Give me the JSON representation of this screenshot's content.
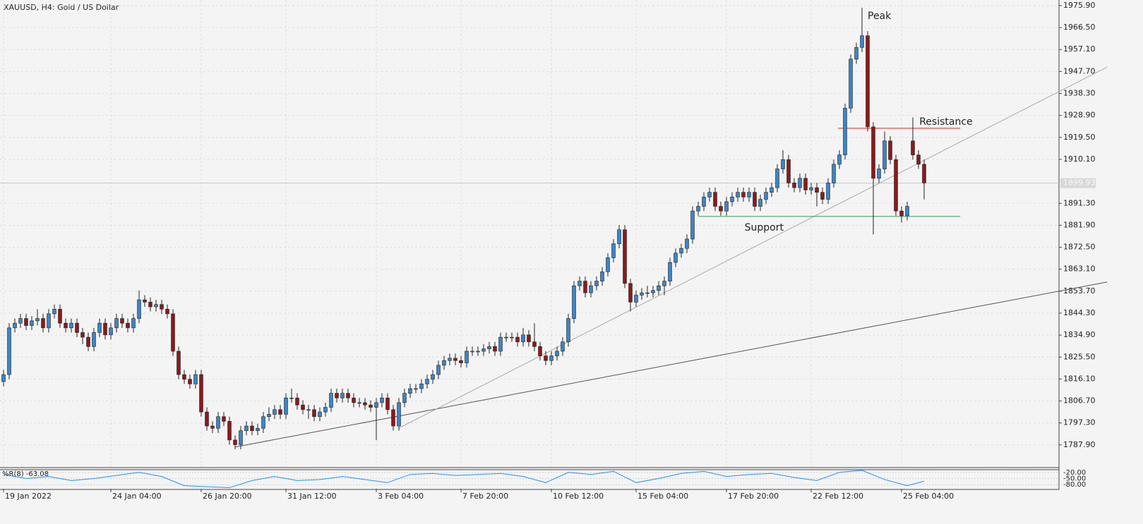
{
  "chart_data": {
    "type": "candlestick",
    "title": "XAUUSD, H4:  Gold / US Dollar",
    "candles": [
      [
        1815,
        1820,
        1813,
        1818
      ],
      [
        1818,
        1840,
        1816,
        1838
      ],
      [
        1838,
        1842,
        1836,
        1840
      ],
      [
        1840,
        1844,
        1838,
        1842
      ],
      [
        1842,
        1844,
        1837,
        1839
      ],
      [
        1839,
        1843,
        1837,
        1841
      ],
      [
        1841,
        1846,
        1839,
        1842
      ],
      [
        1842,
        1844,
        1836,
        1838
      ],
      [
        1838,
        1846,
        1836,
        1844
      ],
      [
        1844,
        1848,
        1842,
        1846
      ],
      [
        1846,
        1848,
        1838,
        1840
      ],
      [
        1840,
        1842,
        1836,
        1838
      ],
      [
        1838,
        1842,
        1836,
        1840
      ],
      [
        1840,
        1842,
        1834,
        1836
      ],
      [
        1836,
        1838,
        1831,
        1834
      ],
      [
        1834,
        1836,
        1828,
        1830
      ],
      [
        1830,
        1838,
        1828,
        1836
      ],
      [
        1836,
        1842,
        1834,
        1840
      ],
      [
        1840,
        1842,
        1833,
        1835
      ],
      [
        1835,
        1840,
        1833,
        1838
      ],
      [
        1838,
        1844,
        1836,
        1842
      ],
      [
        1842,
        1844,
        1838,
        1840
      ],
      [
        1840,
        1842,
        1836,
        1838
      ],
      [
        1838,
        1844,
        1836,
        1842
      ],
      [
        1842,
        1854,
        1840,
        1850
      ],
      [
        1850,
        1852,
        1847,
        1849
      ],
      [
        1849,
        1851,
        1845,
        1847
      ],
      [
        1847,
        1850,
        1845,
        1848
      ],
      [
        1848,
        1850,
        1844,
        1846
      ],
      [
        1846,
        1848,
        1842,
        1844
      ],
      [
        1844,
        1846,
        1826,
        1828
      ],
      [
        1828,
        1830,
        1816,
        1818
      ],
      [
        1818,
        1820,
        1814,
        1816
      ],
      [
        1816,
        1818,
        1812,
        1814
      ],
      [
        1814,
        1820,
        1812,
        1818
      ],
      [
        1818,
        1820,
        1800,
        1802
      ],
      [
        1802,
        1804,
        1794,
        1796
      ],
      [
        1796,
        1798,
        1793,
        1795
      ],
      [
        1795,
        1802,
        1793,
        1800
      ],
      [
        1800,
        1802,
        1796,
        1798
      ],
      [
        1798,
        1800,
        1788,
        1790
      ],
      [
        1790,
        1792,
        1786,
        1788
      ],
      [
        1788,
        1796,
        1786,
        1794
      ],
      [
        1794,
        1798,
        1792,
        1796
      ],
      [
        1796,
        1798,
        1792,
        1794
      ],
      [
        1794,
        1797,
        1792,
        1795
      ],
      [
        1795,
        1802,
        1793,
        1800
      ],
      [
        1800,
        1804,
        1798,
        1801
      ],
      [
        1801,
        1805,
        1799,
        1803
      ],
      [
        1803,
        1805,
        1799,
        1801
      ],
      [
        1801,
        1810,
        1799,
        1808
      ],
      [
        1808,
        1812,
        1806,
        1808
      ],
      [
        1808,
        1810,
        1803,
        1805
      ],
      [
        1805,
        1807,
        1801,
        1803
      ],
      [
        1803,
        1805,
        1799,
        1803
      ],
      [
        1803,
        1805,
        1798,
        1800
      ],
      [
        1800,
        1804,
        1798,
        1802
      ],
      [
        1802,
        1806,
        1800,
        1804
      ],
      [
        1804,
        1812,
        1802,
        1810
      ],
      [
        1810,
        1812,
        1806,
        1808
      ],
      [
        1808,
        1812,
        1806,
        1810
      ],
      [
        1810,
        1812,
        1806,
        1808
      ],
      [
        1808,
        1810,
        1804,
        1806
      ],
      [
        1806,
        1808,
        1804,
        1806
      ],
      [
        1806,
        1808,
        1803,
        1805
      ],
      [
        1805,
        1807,
        1802,
        1804
      ],
      [
        1804,
        1808,
        1790,
        1806
      ],
      [
        1806,
        1810,
        1804,
        1808
      ],
      [
        1808,
        1810,
        1801,
        1803
      ],
      [
        1803,
        1805,
        1794,
        1796
      ],
      [
        1796,
        1808,
        1794,
        1806
      ],
      [
        1806,
        1812,
        1804,
        1810
      ],
      [
        1810,
        1814,
        1808,
        1812
      ],
      [
        1812,
        1814,
        1810,
        1812
      ],
      [
        1812,
        1816,
        1810,
        1814
      ],
      [
        1814,
        1818,
        1812,
        1816
      ],
      [
        1816,
        1820,
        1814,
        1818
      ],
      [
        1818,
        1824,
        1816,
        1822
      ],
      [
        1822,
        1826,
        1820,
        1824
      ],
      [
        1824,
        1827,
        1822,
        1825
      ],
      [
        1825,
        1827,
        1822,
        1824
      ],
      [
        1824,
        1826,
        1821,
        1823
      ],
      [
        1823,
        1830,
        1821,
        1828
      ],
      [
        1828,
        1830,
        1826,
        1828
      ],
      [
        1828,
        1830,
        1826,
        1828
      ],
      [
        1828,
        1831,
        1826,
        1829
      ],
      [
        1829,
        1832,
        1827,
        1830
      ],
      [
        1830,
        1832,
        1826,
        1828
      ],
      [
        1828,
        1836,
        1826,
        1834
      ],
      [
        1834,
        1836,
        1832,
        1834
      ],
      [
        1834,
        1836,
        1832,
        1834
      ],
      [
        1834,
        1836,
        1830,
        1832
      ],
      [
        1832,
        1838,
        1830,
        1835
      ],
      [
        1835,
        1837,
        1830,
        1832
      ],
      [
        1832,
        1840,
        1828,
        1830
      ],
      [
        1830,
        1832,
        1824,
        1826
      ],
      [
        1826,
        1828,
        1822,
        1824
      ],
      [
        1824,
        1828,
        1822,
        1826
      ],
      [
        1826,
        1830,
        1824,
        1828
      ],
      [
        1828,
        1834,
        1826,
        1832
      ],
      [
        1832,
        1844,
        1830,
        1842
      ],
      [
        1842,
        1858,
        1840,
        1856
      ],
      [
        1856,
        1860,
        1854,
        1858
      ],
      [
        1858,
        1860,
        1851,
        1853
      ],
      [
        1853,
        1858,
        1851,
        1856
      ],
      [
        1856,
        1860,
        1854,
        1858
      ],
      [
        1858,
        1864,
        1856,
        1862
      ],
      [
        1862,
        1870,
        1860,
        1868
      ],
      [
        1868,
        1876,
        1866,
        1874
      ],
      [
        1874,
        1882,
        1872,
        1880
      ],
      [
        1880,
        1882,
        1855,
        1857
      ],
      [
        1857,
        1859,
        1845,
        1849
      ],
      [
        1849,
        1854,
        1847,
        1852
      ],
      [
        1852,
        1855,
        1850,
        1853
      ],
      [
        1853,
        1856,
        1851,
        1853
      ],
      [
        1853,
        1856,
        1851,
        1854
      ],
      [
        1854,
        1858,
        1852,
        1856
      ],
      [
        1856,
        1860,
        1852,
        1858
      ],
      [
        1858,
        1868,
        1856,
        1866
      ],
      [
        1866,
        1872,
        1864,
        1870
      ],
      [
        1870,
        1874,
        1868,
        1872
      ],
      [
        1872,
        1878,
        1870,
        1876
      ],
      [
        1876,
        1890,
        1874,
        1888
      ],
      [
        1888,
        1892,
        1886,
        1890
      ],
      [
        1890,
        1896,
        1888,
        1894
      ],
      [
        1894,
        1898,
        1892,
        1896
      ],
      [
        1896,
        1898,
        1888,
        1890
      ],
      [
        1890,
        1892,
        1886,
        1888
      ],
      [
        1888,
        1894,
        1886,
        1892
      ],
      [
        1892,
        1896,
        1890,
        1894
      ],
      [
        1894,
        1898,
        1892,
        1896
      ],
      [
        1896,
        1898,
        1892,
        1894
      ],
      [
        1894,
        1898,
        1892,
        1896
      ],
      [
        1896,
        1898,
        1888,
        1890
      ],
      [
        1890,
        1895,
        1888,
        1893
      ],
      [
        1893,
        1898,
        1891,
        1896
      ],
      [
        1896,
        1900,
        1894,
        1898
      ],
      [
        1898,
        1908,
        1896,
        1906
      ],
      [
        1906,
        1914,
        1904,
        1910
      ],
      [
        1910,
        1912,
        1898,
        1900
      ],
      [
        1900,
        1902,
        1896,
        1898
      ],
      [
        1898,
        1904,
        1896,
        1902
      ],
      [
        1902,
        1904,
        1895,
        1897
      ],
      [
        1897,
        1900,
        1895,
        1898
      ],
      [
        1898,
        1900,
        1890,
        1896
      ],
      [
        1896,
        1898,
        1891,
        1893
      ],
      [
        1893,
        1902,
        1891,
        1900
      ],
      [
        1900,
        1910,
        1898,
        1908
      ],
      [
        1908,
        1914,
        1906,
        1912
      ],
      [
        1912,
        1934,
        1910,
        1932
      ],
      [
        1932,
        1955,
        1930,
        1953
      ],
      [
        1953,
        1960,
        1951,
        1958
      ],
      [
        1958,
        1975,
        1956,
        1963
      ],
      [
        1963,
        1965,
        1922,
        1924
      ],
      [
        1924,
        1926,
        1878,
        1902
      ],
      [
        1902,
        1908,
        1900,
        1906
      ],
      [
        1906,
        1922,
        1904,
        1918
      ],
      [
        1918,
        1920,
        1908,
        1910
      ],
      [
        1910,
        1912,
        1886,
        1888
      ],
      [
        1888,
        1890,
        1883,
        1886
      ],
      [
        1886,
        1892,
        1884,
        1890
      ],
      [
        1918,
        1928,
        1910,
        1912
      ],
      [
        1912,
        1914,
        1906,
        1908
      ],
      [
        1908,
        1910,
        1893,
        1900
      ]
    ],
    "bull_color": "#3d85c6",
    "bear_color": "#8b1a1a",
    "xlim": [
      -0.625,
      186.875
    ],
    "xticks": [
      {
        "value": 0,
        "label": "19 Jan 2022"
      },
      {
        "value": 19,
        "label": "24 Jan 04:00"
      },
      {
        "value": 35,
        "label": "26 Jan 20:00"
      },
      {
        "value": 50,
        "label": "31 Jan 12:00"
      },
      {
        "value": 66,
        "label": "3 Feb 04:00"
      },
      {
        "value": 81,
        "label": "7 Feb 20:00"
      },
      {
        "value": 97,
        "label": "10 Feb 12:00"
      },
      {
        "value": 112,
        "label": "15 Feb 04:00"
      },
      {
        "value": 128,
        "label": "17 Feb 20:00"
      },
      {
        "value": 143,
        "label": "22 Feb 12:00"
      },
      {
        "value": 159,
        "label": "25 Feb 04:00"
      }
    ],
    "ylim": [
      1778.5,
      1978.3
    ],
    "yticks": [
      {
        "value": 1975.9,
        "label": "1975.90"
      },
      {
        "value": 1966.5,
        "label": "1966.50"
      },
      {
        "value": 1957.1,
        "label": "1957.10"
      },
      {
        "value": 1947.7,
        "label": "1947.70"
      },
      {
        "value": 1938.3,
        "label": "1938.30"
      },
      {
        "value": 1928.9,
        "label": "1928.90"
      },
      {
        "value": 1919.5,
        "label": "1919.50"
      },
      {
        "value": 1910.1,
        "label": "1910.10"
      },
      {
        "value": 1891.3,
        "label": "1891.30"
      },
      {
        "value": 1881.9,
        "label": "1881.90"
      },
      {
        "value": 1872.5,
        "label": "1872.50"
      },
      {
        "value": 1863.1,
        "label": "1863.10"
      },
      {
        "value": 1853.7,
        "label": "1853.70"
      },
      {
        "value": 1844.3,
        "label": "1844.30"
      },
      {
        "value": 1834.9,
        "label": "1834.90"
      },
      {
        "value": 1825.5,
        "label": "1825.50"
      },
      {
        "value": 1816.1,
        "label": "1816.10"
      },
      {
        "value": 1806.7,
        "label": "1806.70"
      },
      {
        "value": 1797.3,
        "label": "1797.30"
      },
      {
        "value": 1787.9,
        "label": "1787.90"
      }
    ],
    "grid": true,
    "current_price": {
      "value": 1899.93,
      "label": "1899.93"
    },
    "trendlines": [
      {
        "x": [
          41,
          195.4
        ],
        "y": [
          1787,
          1857.6
        ],
        "color": "#555555"
      },
      {
        "x": [
          70,
          195.4
        ],
        "y": [
          1795.1,
          1949.6
        ],
        "color": "#aaaaaa"
      }
    ],
    "levels": [
      {
        "label": "Support",
        "value": 1885.7,
        "x": [
          123,
          169.4
        ],
        "color": "#2e9e4f"
      },
      {
        "label": "Resistance",
        "value": 1923.4,
        "x": [
          147.75,
          169.4
        ],
        "color": "#d62728"
      }
    ],
    "peak_label": "Peak",
    "indicator": {
      "label": "%R(8) -63.08",
      "color": "#1e90ff",
      "ylim": [
        -100,
        0
      ],
      "yticks": [
        {
          "value": -20,
          "label": "-20.00"
        },
        {
          "value": -50,
          "label": "-50.00"
        },
        {
          "value": -80,
          "label": "-80.00"
        }
      ],
      "x": [
        0,
        4,
        8,
        12,
        16,
        20,
        24,
        28,
        32,
        36,
        40,
        44,
        48,
        52,
        56,
        60,
        64,
        68,
        72,
        76,
        80,
        84,
        88,
        92,
        96,
        100,
        104,
        108,
        112,
        116,
        120,
        124,
        128,
        132,
        136,
        140,
        144,
        148,
        152,
        156,
        160,
        163
      ],
      "values": [
        -30,
        -50,
        -40,
        -60,
        -50,
        -35,
        -20,
        -40,
        -85,
        -90,
        -95,
        -60,
        -40,
        -60,
        -55,
        -40,
        -55,
        -70,
        -30,
        -25,
        -35,
        -30,
        -25,
        -40,
        -70,
        -20,
        -30,
        -15,
        -70,
        -50,
        -25,
        -15,
        -40,
        -30,
        -25,
        -45,
        -60,
        -20,
        -10,
        -55,
        -85,
        -63.08
      ]
    }
  }
}
